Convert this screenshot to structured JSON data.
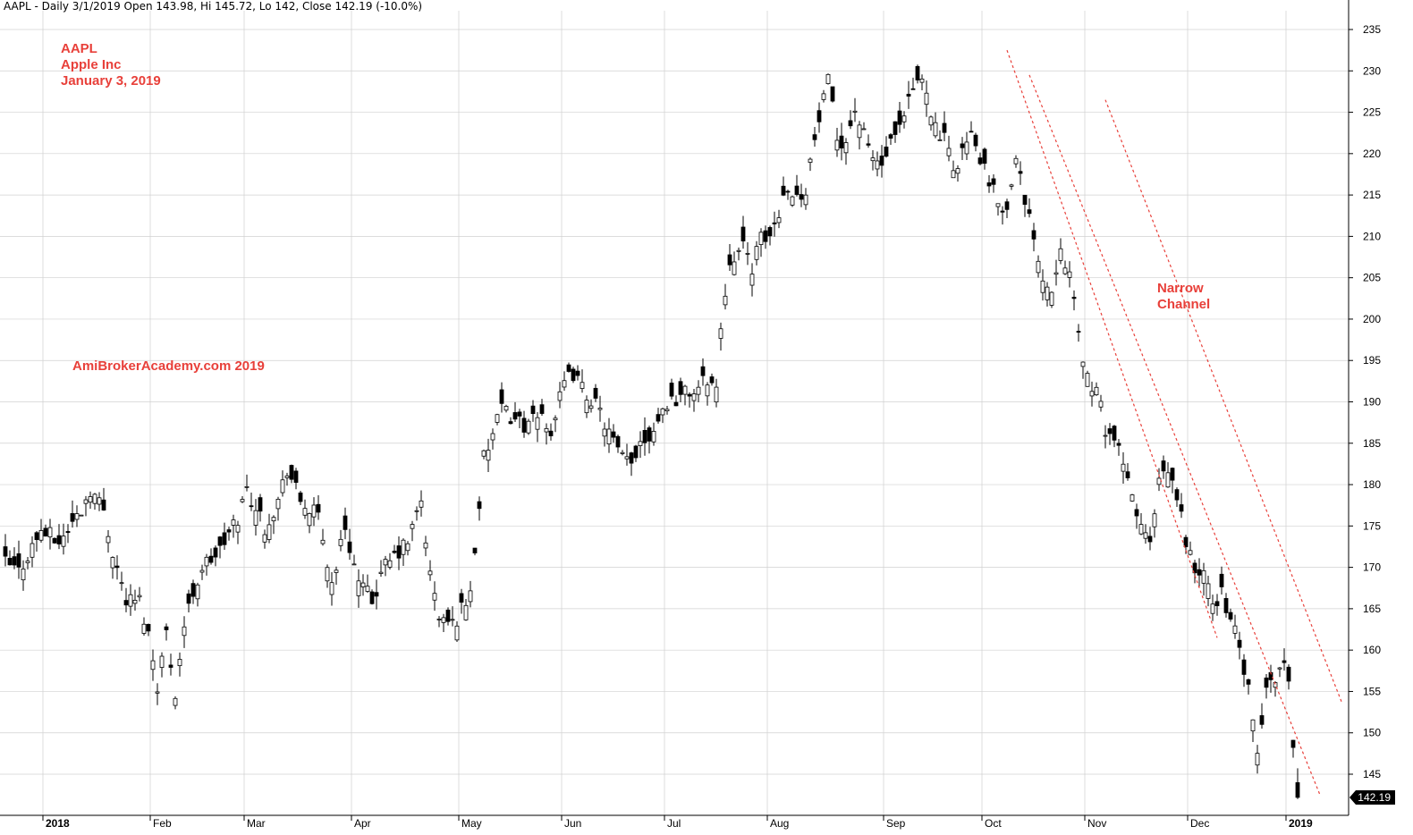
{
  "header": {
    "text": "AAPL - Daily 3/1/2019 Open 143.98, Hi 145.72, Lo 142, Close 142.19 (-10.0%)"
  },
  "annotations": {
    "symbol": "AAPL",
    "company": "Apple Inc",
    "date": "January 3, 2019",
    "watermark": "AmiBrokerAcademy.com 2019",
    "channel_line1": "Narrow",
    "channel_line2": "Channel"
  },
  "last_price_label": "142.19",
  "colors": {
    "annotation": "#e8403a",
    "candle": "#000000",
    "grid": "#d0d0d0",
    "channel": "#e8403a",
    "last_label_bg": "#000000"
  },
  "chart_data": {
    "type": "candlestick",
    "ylim": [
      142,
      236
    ],
    "y_ticks": [
      145,
      150,
      155,
      160,
      165,
      170,
      175,
      180,
      185,
      190,
      195,
      200,
      205,
      210,
      215,
      220,
      225,
      230,
      235
    ],
    "x_ticks": [
      {
        "label": "2018",
        "bold": true
      },
      {
        "label": "Feb",
        "bold": false
      },
      {
        "label": "Mar",
        "bold": false
      },
      {
        "label": "Apr",
        "bold": false
      },
      {
        "label": "May",
        "bold": false
      },
      {
        "label": "Jun",
        "bold": false
      },
      {
        "label": "Jul",
        "bold": false
      },
      {
        "label": "Aug",
        "bold": false
      },
      {
        "label": "Sep",
        "bold": false
      },
      {
        "label": "Oct",
        "bold": false
      },
      {
        "label": "Nov",
        "bold": false
      },
      {
        "label": "Dec",
        "bold": false
      },
      {
        "label": "2019",
        "bold": true
      }
    ],
    "anchors": [
      [
        0,
        170.5
      ],
      [
        3,
        169.5
      ],
      [
        8,
        174.5
      ],
      [
        12,
        173
      ],
      [
        17,
        177
      ],
      [
        19,
        179.5
      ],
      [
        22,
        177
      ],
      [
        24,
        172
      ],
      [
        27,
        166
      ],
      [
        30,
        166
      ],
      [
        32,
        162
      ],
      [
        34,
        156
      ],
      [
        36,
        162
      ],
      [
        38,
        155
      ],
      [
        40,
        163
      ],
      [
        42,
        167
      ],
      [
        44,
        170
      ],
      [
        48,
        172
      ],
      [
        52,
        176
      ],
      [
        54,
        179.5
      ],
      [
        58,
        175
      ],
      [
        61,
        178
      ],
      [
        63,
        182
      ],
      [
        66,
        178
      ],
      [
        70,
        176
      ],
      [
        73,
        168
      ],
      [
        76,
        175
      ],
      [
        79,
        168
      ],
      [
        82,
        166
      ],
      [
        85,
        170
      ],
      [
        90,
        173
      ],
      [
        93,
        178
      ],
      [
        95,
        169
      ],
      [
        97,
        164
      ],
      [
        100,
        163
      ],
      [
        102,
        165
      ],
      [
        104,
        167
      ],
      [
        107,
        183
      ],
      [
        109,
        186
      ],
      [
        111,
        189
      ],
      [
        114,
        188
      ],
      [
        117,
        187
      ],
      [
        120,
        188.5
      ],
      [
        122,
        186.5
      ],
      [
        125,
        192
      ],
      [
        127,
        193.5
      ],
      [
        129,
        191.5
      ],
      [
        131,
        190.5
      ],
      [
        134,
        187.5
      ],
      [
        136,
        185
      ],
      [
        138,
        183
      ],
      [
        140,
        182.5
      ],
      [
        142,
        185.5
      ],
      [
        144,
        186
      ],
      [
        146,
        188
      ],
      [
        148,
        190
      ],
      [
        152,
        191
      ],
      [
        155,
        191.5
      ],
      [
        157,
        193
      ],
      [
        159,
        191.5
      ],
      [
        160,
        199
      ],
      [
        162,
        207.5
      ],
      [
        165,
        208.5
      ],
      [
        167,
        206.5
      ],
      [
        169,
        209.5
      ],
      [
        171,
        210
      ],
      [
        173,
        213
      ],
      [
        175,
        216.5
      ],
      [
        177,
        214.5
      ],
      [
        179,
        216
      ],
      [
        180,
        219
      ],
      [
        182,
        224
      ],
      [
        184,
        228.5
      ],
      [
        186,
        222
      ],
      [
        188,
        221.5
      ],
      [
        190,
        225.5
      ],
      [
        192,
        222
      ],
      [
        194,
        219.5
      ],
      [
        196,
        218.5
      ],
      [
        198,
        221
      ],
      [
        200,
        222.5
      ],
      [
        202,
        226
      ],
      [
        204,
        229
      ],
      [
        206,
        228
      ],
      [
        208,
        223
      ],
      [
        210,
        221.5
      ],
      [
        212,
        218
      ],
      [
        214,
        220.5
      ],
      [
        216,
        222
      ],
      [
        218,
        219.5
      ],
      [
        220,
        216
      ],
      [
        222,
        214.5
      ],
      [
        224,
        213
      ],
      [
        226,
        220.5
      ],
      [
        228,
        213.5
      ],
      [
        230,
        210.5
      ],
      [
        232,
        205
      ],
      [
        234,
        203.5
      ],
      [
        236,
        209.5
      ],
      [
        238,
        205
      ],
      [
        240,
        198
      ],
      [
        242,
        193
      ],
      [
        244,
        191
      ],
      [
        246,
        187
      ],
      [
        248,
        185.5
      ],
      [
        250,
        182
      ],
      [
        252,
        178.5
      ],
      [
        254,
        175
      ],
      [
        256,
        172.5
      ],
      [
        258,
        180
      ],
      [
        260,
        181.5
      ],
      [
        262,
        178.5
      ],
      [
        264,
        173.5
      ],
      [
        266,
        169.5
      ],
      [
        268,
        169
      ],
      [
        270,
        165.5
      ],
      [
        272,
        167
      ],
      [
        274,
        164
      ],
      [
        276,
        160
      ],
      [
        278,
        155
      ],
      [
        279,
        150.5
      ],
      [
        280,
        147.5
      ],
      [
        282,
        155
      ],
      [
        284,
        157
      ],
      [
        286,
        158.5
      ],
      [
        287,
        156
      ],
      [
        289,
        142.2
      ]
    ],
    "channel_lines": [
      {
        "from": [
          224,
          232.5
        ],
        "to": [
          271,
          161.5
        ]
      },
      {
        "from": [
          229,
          229.5
        ],
        "to": [
          294,
          142.5
        ]
      },
      {
        "from": [
          246,
          226.5
        ],
        "to": [
          299,
          153.5
        ]
      }
    ],
    "last_close": 142.19
  }
}
